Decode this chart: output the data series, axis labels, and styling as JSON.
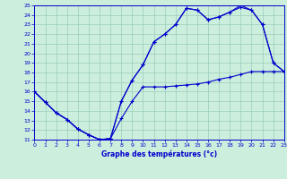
{
  "title": "Graphe des températures (°c)",
  "bg_color": "#cceedd",
  "line_color": "#0000cc",
  "grid_color": "#99ccbb",
  "xlim": [
    0,
    23
  ],
  "ylim": [
    11,
    25
  ],
  "xticks": [
    0,
    1,
    2,
    3,
    4,
    5,
    6,
    7,
    8,
    9,
    10,
    11,
    12,
    13,
    14,
    15,
    16,
    17,
    18,
    19,
    20,
    21,
    22,
    23
  ],
  "yticks": [
    11,
    12,
    13,
    14,
    15,
    16,
    17,
    18,
    19,
    20,
    21,
    22,
    23,
    24,
    25
  ],
  "line1_x": [
    0,
    1,
    2,
    3,
    4,
    5,
    6,
    7,
    8,
    9,
    10,
    11,
    12,
    13,
    14,
    15,
    16,
    17,
    18,
    19,
    20,
    21,
    22,
    23
  ],
  "line1_y": [
    16.0,
    14.9,
    13.8,
    13.1,
    12.1,
    11.5,
    11.0,
    11.1,
    13.2,
    15.0,
    16.5,
    16.5,
    16.5,
    16.6,
    16.7,
    16.8,
    17.0,
    17.3,
    17.5,
    17.8,
    18.1,
    18.1,
    18.1,
    18.1
  ],
  "line2_x": [
    0,
    1,
    2,
    3,
    4,
    5,
    6,
    7,
    8,
    9,
    10,
    11,
    12,
    13,
    14,
    15,
    16,
    17,
    18,
    19,
    20,
    21,
    22,
    23
  ],
  "line2_y": [
    16.0,
    14.9,
    13.8,
    13.1,
    12.1,
    11.5,
    11.0,
    11.1,
    15.0,
    17.2,
    18.8,
    21.2,
    22.0,
    23.0,
    24.7,
    24.5,
    23.5,
    23.8,
    24.3,
    24.8,
    24.5,
    23.0,
    19.0,
    18.1
  ],
  "line3_x": [
    0,
    1,
    2,
    3,
    4,
    5,
    6,
    7,
    8,
    9,
    10,
    11,
    12,
    13,
    14,
    15,
    16,
    17,
    18,
    19,
    20,
    21,
    22,
    23
  ],
  "line3_y": [
    16.0,
    14.9,
    13.8,
    13.1,
    12.1,
    11.5,
    11.0,
    11.1,
    15.0,
    17.2,
    18.8,
    21.2,
    22.0,
    23.0,
    24.7,
    24.5,
    23.5,
    23.8,
    24.3,
    25.0,
    24.5,
    23.0,
    19.0,
    18.1
  ]
}
